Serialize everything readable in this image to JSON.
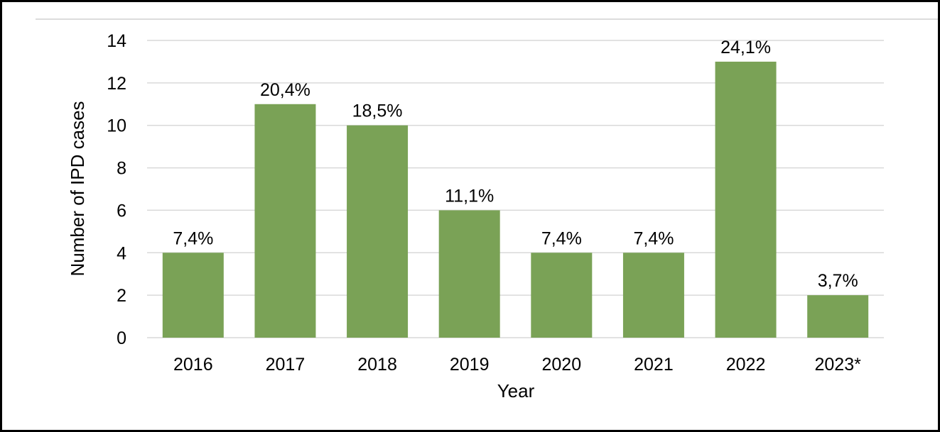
{
  "chart_data": {
    "type": "bar",
    "title": "",
    "xlabel": "Year",
    "ylabel": "Number of IPD cases",
    "categories": [
      "2016",
      "2017",
      "2018",
      "2019",
      "2020",
      "2021",
      "2022",
      "2023*"
    ],
    "values": [
      4,
      11,
      10,
      6,
      4,
      4,
      13,
      2
    ],
    "data_labels": [
      "7,4%",
      "20,4%",
      "18,5%",
      "11,1%",
      "7,4%",
      "7,4%",
      "24,1%",
      "3,7%"
    ],
    "ylim": [
      0,
      14
    ],
    "yticks": [
      0,
      2,
      4,
      6,
      8,
      10,
      12,
      14
    ],
    "grid": true,
    "bar_color": "#7aa256",
    "grid_color": "#d9d9d9"
  }
}
